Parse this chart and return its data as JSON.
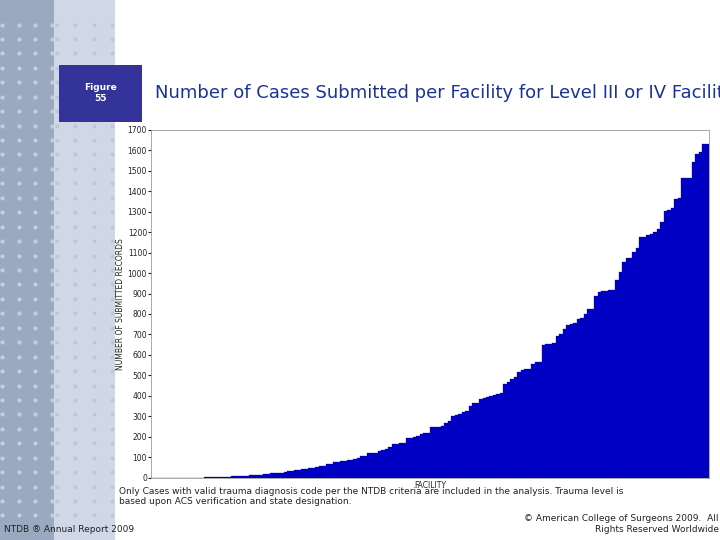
{
  "title": "Number of Cases Submitted per Facility for Level III or IV Facilities",
  "xlabel": "FACILITY",
  "ylabel": "NUMBER OF SUBMITTED RECORDS",
  "ylim": [
    0,
    1700
  ],
  "yticks": [
    0,
    100,
    200,
    300,
    400,
    500,
    600,
    700,
    800,
    900,
    1000,
    1100,
    1200,
    1300,
    1400,
    1500,
    1600,
    1700
  ],
  "bar_color": "#0000CC",
  "bar_edge_color": "#00008B",
  "n_facilities": 160,
  "max_value": 1630,
  "title_color": "#1a3399",
  "title_fontsize": 13,
  "axis_label_fontsize": 5.5,
  "tick_fontsize": 5.5,
  "figure_bg": "#ffffff",
  "left_panel_bg_left": "#b8c4d8",
  "left_panel_bg_right": "#d0d8e8",
  "badge_bg": "#333399",
  "badge_text": "Figure\n55",
  "badge_fontsize": 6.5,
  "footnote": "Only Cases with valid trauma diagnosis code per the NTDB criteria are included in the analysis. Trauma level is\nbased upon ACS verification and state designation.",
  "footer_left": "NTDB ® Annual Report 2009",
  "footer_right": "© American College of Surgeons 2009.  All\nRights Reserved Worldwide",
  "footer_fontsize": 6.5,
  "footnote_fontsize": 6.5
}
